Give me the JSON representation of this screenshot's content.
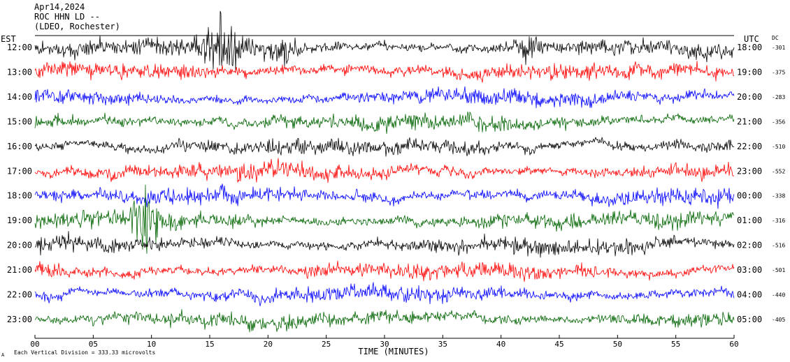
{
  "header": {
    "date": "Apr14,2024",
    "station": "ROC HHN LD --",
    "network": "(LDEO, Rochester)"
  },
  "chart_data": {
    "type": "line",
    "title": "",
    "xlabel": "TIME (MINUTES)",
    "left_axis_label": "EST",
    "right_axis_label": "UTC",
    "dc_label": "DC",
    "footer_note": "Each Vertical Division =  333.33 microvolts",
    "xlim": [
      0,
      60
    ],
    "x_ticks": [
      "00",
      "05",
      "10",
      "15",
      "20",
      "25",
      "30",
      "35",
      "40",
      "45",
      "50",
      "55",
      "60"
    ],
    "trace_colors": [
      "#000000",
      "#ff0000",
      "#0000ff",
      "#006400"
    ],
    "rows": [
      {
        "est": "12:00",
        "utc": "18:00",
        "dc": "-301"
      },
      {
        "est": "13:00",
        "utc": "19:00",
        "dc": "-375"
      },
      {
        "est": "14:00",
        "utc": "20:00",
        "dc": "-283"
      },
      {
        "est": "15:00",
        "utc": "21:00",
        "dc": "-356"
      },
      {
        "est": "16:00",
        "utc": "22:00",
        "dc": "-510"
      },
      {
        "est": "17:00",
        "utc": "23:00",
        "dc": "-552"
      },
      {
        "est": "18:00",
        "utc": "00:00",
        "dc": "-338"
      },
      {
        "est": "19:00",
        "utc": "01:00",
        "dc": "-316"
      },
      {
        "est": "20:00",
        "utc": "02:00",
        "dc": "-516"
      },
      {
        "est": "21:00",
        "utc": "03:00",
        "dc": "-501"
      },
      {
        "est": "22:00",
        "utc": "04:00",
        "dc": "-440"
      },
      {
        "est": "23:00",
        "utc": "05:00",
        "dc": "-405"
      }
    ],
    "events": [
      {
        "row": 0,
        "minute": 16.0,
        "width_min": 1.6,
        "gain": 3.2
      },
      {
        "row": 0,
        "minute": 21.0,
        "width_min": 1.4,
        "gain": 2.0
      },
      {
        "row": 0,
        "minute": 42.3,
        "width_min": 0.8,
        "gain": 2.6
      },
      {
        "row": 7,
        "minute": 9.5,
        "width_min": 1.2,
        "gain": 3.0
      }
    ]
  }
}
